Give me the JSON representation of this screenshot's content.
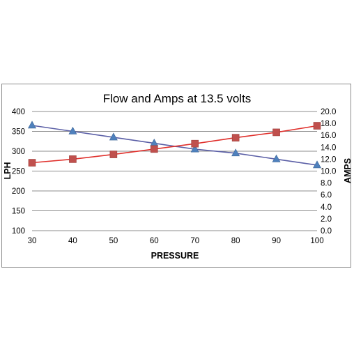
{
  "chart_data": {
    "type": "line",
    "title": "Flow and Amps at 13.5 volts",
    "xlabel": "PRESSURE",
    "ylabel": "LPH",
    "y2label": "AMPS",
    "x": [
      30,
      40,
      50,
      60,
      70,
      80,
      90,
      100
    ],
    "x_ticks": [
      "30",
      "40",
      "50",
      "60",
      "70",
      "80",
      "90",
      "100"
    ],
    "xlim": [
      30,
      100
    ],
    "ylim": [
      100,
      400
    ],
    "y_ticks": [
      "100",
      "150",
      "200",
      "250",
      "300",
      "350",
      "400"
    ],
    "y2lim": [
      0,
      20
    ],
    "y2_ticks": [
      "0.0",
      "2.0",
      "4.0",
      "6.0",
      "8.0",
      "10.0",
      "12.0",
      "14.0",
      "16.0",
      "18.0",
      "20.0"
    ],
    "grid": true,
    "legend": "none",
    "series": [
      {
        "axis": "left",
        "marker": "triangle",
        "color": "#4f81bd",
        "line_color": "#5b5fa6",
        "values": [
          365,
          350,
          335,
          320,
          305,
          295,
          280,
          265
        ]
      },
      {
        "axis": "right",
        "marker": "square",
        "color": "#c0504d",
        "line_color": "#e0302c",
        "values": [
          11.4,
          12.0,
          12.8,
          13.7,
          14.6,
          15.6,
          16.5,
          17.6
        ]
      }
    ]
  }
}
